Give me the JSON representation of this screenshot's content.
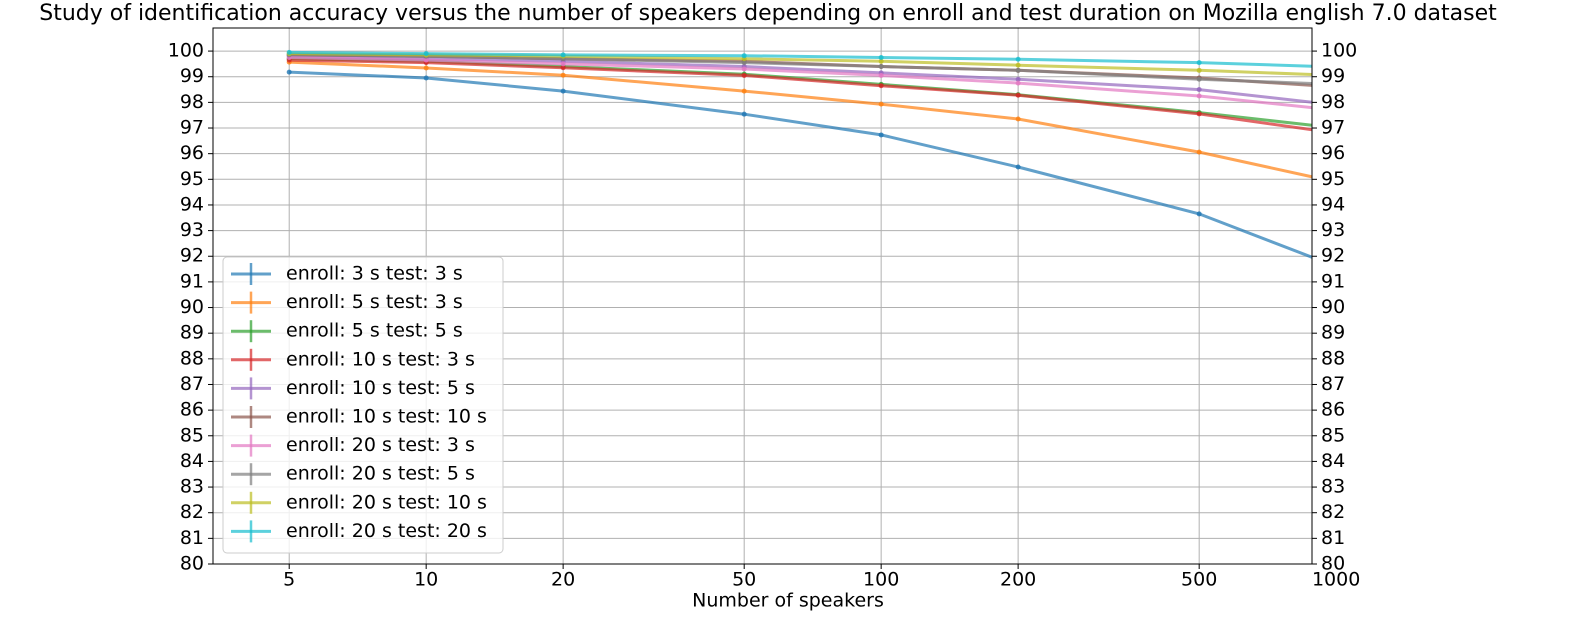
{
  "chart_data": {
    "type": "line",
    "title": "Study of identification accuracy versus the number of speakers depending on enroll and test duration on Mozilla english 7.0 dataset",
    "x_label": "Number of speakers",
    "x": [
      5,
      10,
      20,
      50,
      100,
      200,
      500,
      1000
    ],
    "x_scale": "log",
    "xlim": [
      3.4,
      885
    ],
    "xticks": [
      5,
      10,
      20,
      50,
      100,
      200,
      500,
      1000
    ],
    "ylim": [
      80,
      100.9
    ],
    "yticks": [
      80,
      81,
      82,
      83,
      84,
      85,
      86,
      87,
      88,
      89,
      90,
      91,
      92,
      93,
      94,
      95,
      96,
      97,
      98,
      99,
      100
    ],
    "y2lim": [
      80,
      100.9
    ],
    "y2ticks": [
      80,
      81,
      82,
      83,
      84,
      85,
      86,
      87,
      88,
      89,
      90,
      91,
      92,
      93,
      94,
      95,
      96,
      97,
      98,
      99,
      100
    ],
    "grid": true,
    "legend": "lower left",
    "series": [
      {
        "name": "enroll: 3 s test: 3 s",
        "color": "#1f77b4",
        "values": [
          99.18,
          98.95,
          98.44,
          97.54,
          96.73,
          95.48,
          93.65,
          91.6
        ]
      },
      {
        "name": "enroll: 5 s test: 3 s",
        "color": "#ff7f0e",
        "values": [
          99.57,
          99.34,
          99.06,
          98.44,
          97.93,
          97.35,
          96.06,
          94.89
        ]
      },
      {
        "name": "enroll: 5 s test: 5 s",
        "color": "#2ca02c",
        "values": [
          99.7,
          99.6,
          99.4,
          99.1,
          98.7,
          98.3,
          97.6,
          97.0
        ]
      },
      {
        "name": "enroll: 10 s test: 3 s",
        "color": "#d62728",
        "values": [
          99.65,
          99.55,
          99.35,
          99.05,
          98.65,
          98.28,
          97.55,
          96.8
        ]
      },
      {
        "name": "enroll: 10 s test: 5 s",
        "color": "#9467bd",
        "values": [
          99.8,
          99.7,
          99.6,
          99.4,
          99.15,
          98.9,
          98.5,
          97.9
        ]
      },
      {
        "name": "enroll: 10 s test: 10 s",
        "color": "#8c564b",
        "values": [
          99.85,
          99.8,
          99.7,
          99.6,
          99.4,
          99.25,
          98.95,
          98.6
        ]
      },
      {
        "name": "enroll: 20 s test: 3 s",
        "color": "#e377c2",
        "values": [
          99.75,
          99.65,
          99.5,
          99.3,
          99.05,
          98.75,
          98.25,
          97.7
        ]
      },
      {
        "name": "enroll: 20 s test: 5 s",
        "color": "#7f7f7f",
        "values": [
          99.85,
          99.8,
          99.7,
          99.55,
          99.4,
          99.25,
          98.9,
          98.7
        ]
      },
      {
        "name": "enroll: 20 s test: 10 s",
        "color": "#bcbd22",
        "values": [
          99.9,
          99.85,
          99.8,
          99.7,
          99.6,
          99.45,
          99.25,
          99.05
        ]
      },
      {
        "name": "enroll: 20 s test: 20 s",
        "color": "#17becf",
        "values": [
          99.95,
          99.9,
          99.85,
          99.82,
          99.75,
          99.68,
          99.55,
          99.38
        ]
      }
    ]
  }
}
